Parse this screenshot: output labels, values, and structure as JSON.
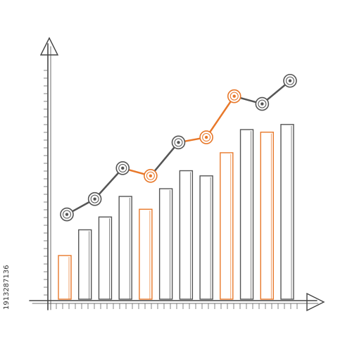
{
  "chart_data": {
    "type": "bar",
    "watermark": "1913287136",
    "ylim": [
      0,
      100
    ],
    "series": [
      {
        "type": "bar",
        "values": [
          17,
          27,
          32,
          40,
          35,
          43,
          50,
          48,
          57,
          66,
          65,
          68
        ],
        "colors": [
          "#e8782a",
          "#555555",
          "#555555",
          "#555555",
          "#e8782a",
          "#555555",
          "#555555",
          "#555555",
          "#e8782a",
          "#555555",
          "#e8782a",
          "#555555"
        ]
      },
      {
        "type": "line",
        "values": [
          33,
          39,
          51,
          48,
          61,
          63,
          79,
          76,
          85
        ],
        "colors": [
          "#555555",
          "#555555",
          "#555555",
          "#e8782a",
          "#555555",
          "#e8782a",
          "#e8782a",
          "#555555",
          "#555555"
        ]
      }
    ]
  }
}
